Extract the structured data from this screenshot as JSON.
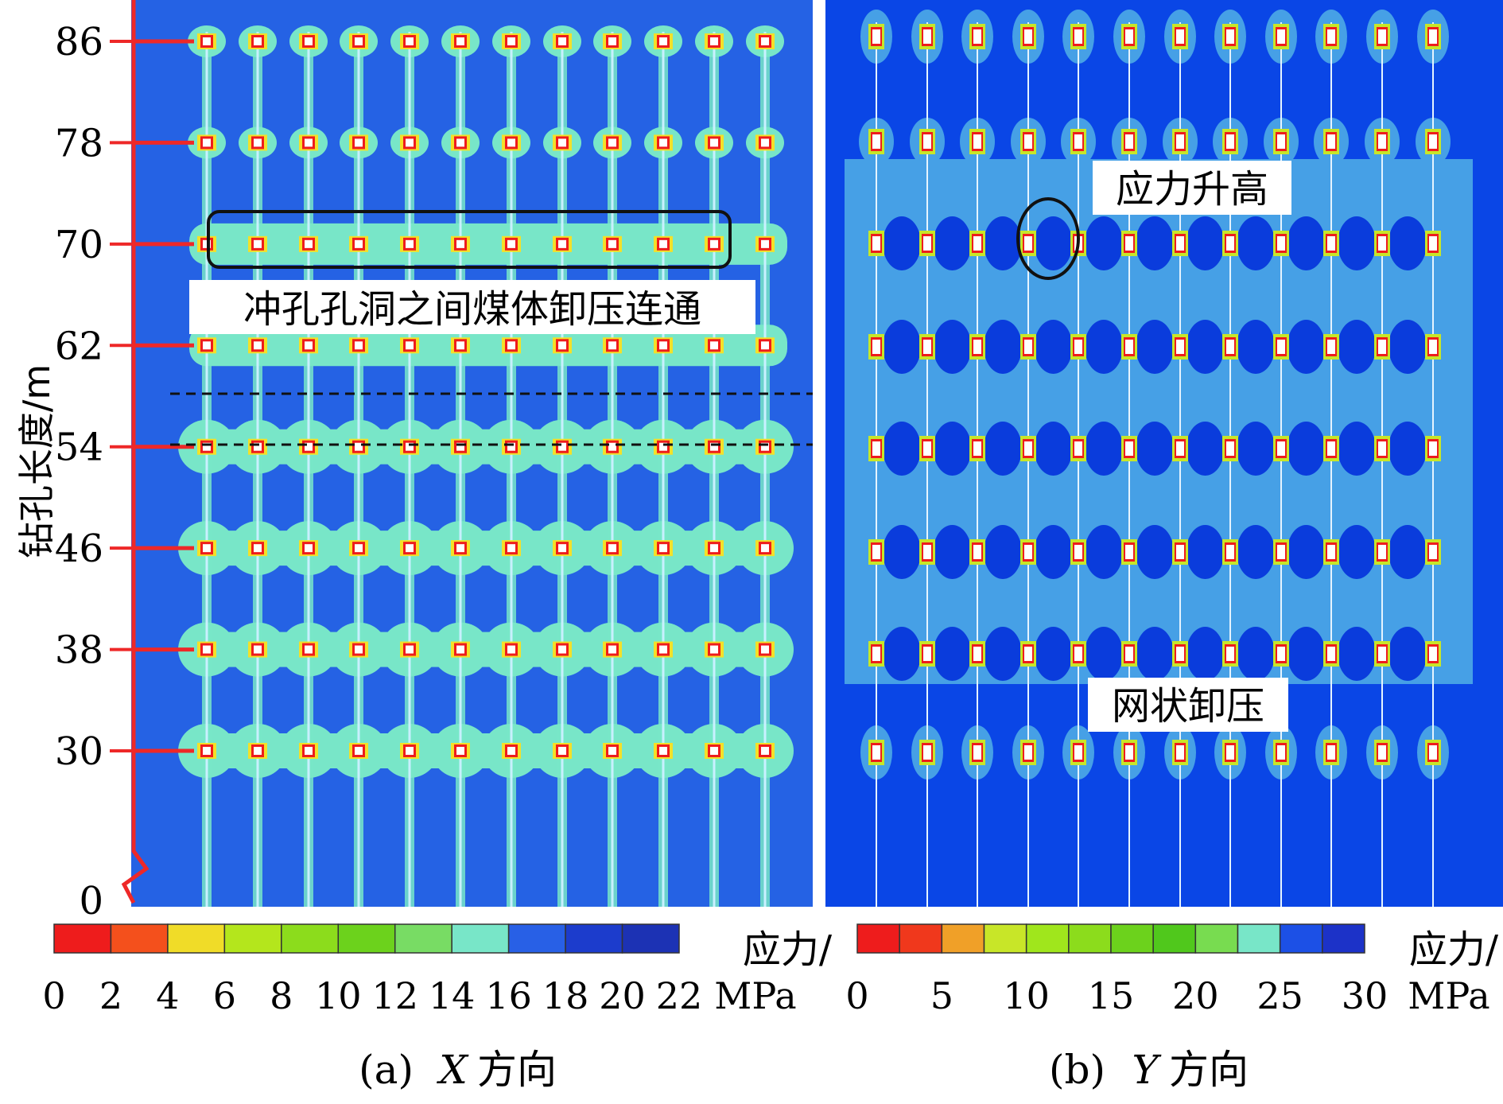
{
  "panel_a": {
    "ylabel": "钻孔长度/m",
    "ticks": [
      {
        "label": "86",
        "value": 86
      },
      {
        "label": "78",
        "value": 78
      },
      {
        "label": "70",
        "value": 70
      },
      {
        "label": "62",
        "value": 62
      },
      {
        "label": "54",
        "value": 54
      },
      {
        "label": "46",
        "value": 46
      },
      {
        "label": "38",
        "value": 38
      },
      {
        "label": "30",
        "value": 30
      },
      {
        "label": "0",
        "value": 0
      }
    ],
    "annotation": "冲孔孔洞之间煤体卸压连通",
    "caption_prefix": "(a)",
    "caption_axis": "X",
    "caption_suffix": "方向",
    "legend": {
      "unit_line1": "应力/",
      "unit_line2": "MPa",
      "labels": [
        "0",
        "2",
        "4",
        "6",
        "8",
        "10",
        "12",
        "14",
        "16",
        "18",
        "20",
        "22"
      ],
      "colors": [
        "#ee1c1c",
        "#f4501c",
        "#f0dc28",
        "#b4e61c",
        "#8cdc1c",
        "#6cd21c",
        "#78dc64",
        "#78e6c8",
        "#2860e6",
        "#1c3ccc",
        "#1c32b4"
      ]
    }
  },
  "panel_b": {
    "annotation_top": "应力升高",
    "annotation_bottom": "网状卸压",
    "caption_prefix": "(b)",
    "caption_axis": "Y",
    "caption_suffix": "方向",
    "legend": {
      "unit_line1": "应力/",
      "unit_line2": "MPa",
      "labels": [
        "0",
        "5",
        "10",
        "15",
        "20",
        "25",
        "30"
      ],
      "colors": [
        "#ee1c1c",
        "#f0381c",
        "#f0a028",
        "#c8e628",
        "#a0e61c",
        "#8cdc1c",
        "#6cd21c",
        "#50c81c",
        "#78dc50",
        "#78e6c8",
        "#1c50e6",
        "#1c32c8"
      ]
    }
  },
  "colors": {
    "bg_a": "#2562e4",
    "bg_b": "#0a46e6",
    "band_b": "#46a0e6",
    "relief": "#78e6c8",
    "axis_red": "#ee2828",
    "borehole": "#c8f0ff"
  }
}
